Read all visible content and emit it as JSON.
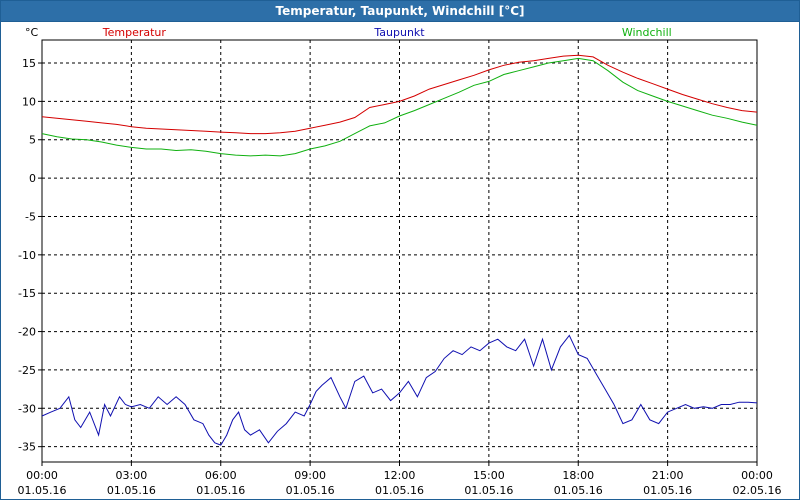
{
  "window": {
    "title": "Temperatur, Taupunkt, Windchill [°C]"
  },
  "colors": {
    "temperatur": "#d40000",
    "taupunkt": "#1010b0",
    "windchill": "#10b010",
    "grid": "#000000",
    "axis": "#000000"
  },
  "chart_data": {
    "type": "line",
    "title": "Temperatur, Taupunkt, Windchill [°C]",
    "ylabel": "°C",
    "xlabel": "",
    "ylim": [
      -37,
      18
    ],
    "xlim": [
      0,
      24
    ],
    "grid": true,
    "yticks": [
      15,
      10,
      5,
      0,
      -5,
      -10,
      -15,
      -20,
      -25,
      -30,
      -35
    ],
    "xticks": [
      {
        "x": 0,
        "time": "00:00",
        "date": "01.05.16"
      },
      {
        "x": 3,
        "time": "03:00",
        "date": "01.05.16"
      },
      {
        "x": 6,
        "time": "06:00",
        "date": "01.05.16"
      },
      {
        "x": 9,
        "time": "09:00",
        "date": "01.05.16"
      },
      {
        "x": 12,
        "time": "12:00",
        "date": "01.05.16"
      },
      {
        "x": 15,
        "time": "15:00",
        "date": "01.05.16"
      },
      {
        "x": 18,
        "time": "18:00",
        "date": "01.05.16"
      },
      {
        "x": 21,
        "time": "21:00",
        "date": "01.05.16"
      },
      {
        "x": 24,
        "time": "00:00",
        "date": "02.05.16"
      }
    ],
    "legend_placement": "top",
    "series": [
      {
        "name": "Temperatur",
        "key": "temperatur",
        "x": [
          0,
          0.5,
          1,
          1.5,
          2,
          2.5,
          3,
          3.5,
          4,
          4.5,
          5,
          5.5,
          6,
          6.5,
          7,
          7.5,
          8,
          8.5,
          9,
          9.5,
          10,
          10.5,
          11,
          11.5,
          12,
          12.5,
          13,
          13.5,
          14,
          14.5,
          15,
          15.5,
          16,
          16.5,
          17,
          17.5,
          18,
          18.5,
          19,
          19.5,
          20,
          20.5,
          21,
          21.5,
          22,
          22.5,
          23,
          23.5,
          24
        ],
        "values": [
          8.0,
          7.8,
          7.6,
          7.4,
          7.2,
          7.0,
          6.7,
          6.5,
          6.4,
          6.3,
          6.2,
          6.1,
          6.0,
          5.9,
          5.8,
          5.8,
          5.9,
          6.1,
          6.5,
          6.9,
          7.3,
          7.9,
          9.2,
          9.6,
          10.0,
          10.7,
          11.6,
          12.2,
          12.8,
          13.4,
          14.1,
          14.7,
          15.1,
          15.3,
          15.6,
          15.9,
          16.0,
          15.8,
          14.7,
          13.8,
          13.0,
          12.3,
          11.6,
          10.9,
          10.3,
          9.7,
          9.2,
          8.8,
          8.6
        ]
      },
      {
        "name": "Taupunkt",
        "key": "taupunkt",
        "x": [
          0,
          0.3,
          0.6,
          0.9,
          1.1,
          1.3,
          1.6,
          1.9,
          2.1,
          2.3,
          2.6,
          2.8,
          3.0,
          3.3,
          3.6,
          3.9,
          4.2,
          4.5,
          4.8,
          5.1,
          5.4,
          5.6,
          5.8,
          6.0,
          6.2,
          6.4,
          6.6,
          6.8,
          7.0,
          7.3,
          7.6,
          7.9,
          8.2,
          8.5,
          8.8,
          9.0,
          9.2,
          9.4,
          9.7,
          10.0,
          10.2,
          10.5,
          10.8,
          11.1,
          11.4,
          11.7,
          12.0,
          12.3,
          12.6,
          12.9,
          13.2,
          13.5,
          13.8,
          14.1,
          14.4,
          14.7,
          15.0,
          15.3,
          15.6,
          15.9,
          16.2,
          16.5,
          16.8,
          17.1,
          17.4,
          17.7,
          18.0,
          18.3,
          18.6,
          18.9,
          19.2,
          19.5,
          19.8,
          20.1,
          20.4,
          20.7,
          21.0,
          21.3,
          21.6,
          21.9,
          22.2,
          22.5,
          22.8,
          23.1,
          23.4,
          23.7,
          24.0
        ],
        "values": [
          -31,
          -30.5,
          -30,
          -28.5,
          -31.5,
          -32.5,
          -30.5,
          -33.5,
          -29.5,
          -31,
          -28.5,
          -29.5,
          -29.8,
          -29.5,
          -30,
          -28.5,
          -29.5,
          -28.5,
          -29.5,
          -31.5,
          -32,
          -33.5,
          -34.5,
          -34.8,
          -33.5,
          -31.5,
          -30.5,
          -32.8,
          -33.5,
          -32.8,
          -34.5,
          -33,
          -32,
          -30.5,
          -31,
          -29.5,
          -27.8,
          -27,
          -26,
          -28.5,
          -30,
          -26.5,
          -25.8,
          -28,
          -27.5,
          -29,
          -28,
          -26.5,
          -28.5,
          -26,
          -25.2,
          -23.5,
          -22.5,
          -23,
          -22,
          -22.5,
          -21.5,
          -21,
          -22,
          -22.5,
          -21,
          -24.5,
          -21,
          -25,
          -22,
          -20.5,
          -23,
          -23.5,
          -25.5,
          -27.5,
          -29.5,
          -32,
          -31.5,
          -29.5,
          -31.5,
          -32,
          -30.5,
          -30,
          -29.5,
          -30,
          -29.8,
          -30,
          -29.5,
          -29.5,
          -29.2,
          -29.2,
          -29.3
        ]
      },
      {
        "name": "Windchill",
        "key": "windchill",
        "x": [
          0,
          0.5,
          1,
          1.5,
          2,
          2.5,
          3,
          3.5,
          4,
          4.5,
          5,
          5.5,
          6,
          6.5,
          7,
          7.5,
          8,
          8.5,
          9,
          9.5,
          10,
          10.5,
          11,
          11.5,
          12,
          12.5,
          13,
          13.5,
          14,
          14.5,
          15,
          15.5,
          16,
          16.5,
          17,
          17.5,
          18,
          18.5,
          19,
          19.5,
          20,
          20.5,
          21,
          21.5,
          22,
          22.5,
          23,
          23.5,
          24
        ],
        "values": [
          5.8,
          5.4,
          5.1,
          5.0,
          4.7,
          4.3,
          4.0,
          3.8,
          3.8,
          3.6,
          3.7,
          3.5,
          3.2,
          3.0,
          2.9,
          3.0,
          2.9,
          3.2,
          3.8,
          4.2,
          4.8,
          5.8,
          6.8,
          7.2,
          8.1,
          8.8,
          9.6,
          10.4,
          11.2,
          12.1,
          12.6,
          13.5,
          14.0,
          14.5,
          15.0,
          15.3,
          15.6,
          15.3,
          14.0,
          12.5,
          11.4,
          10.7,
          10.0,
          9.4,
          8.8,
          8.2,
          7.8,
          7.3,
          6.9
        ]
      }
    ]
  }
}
